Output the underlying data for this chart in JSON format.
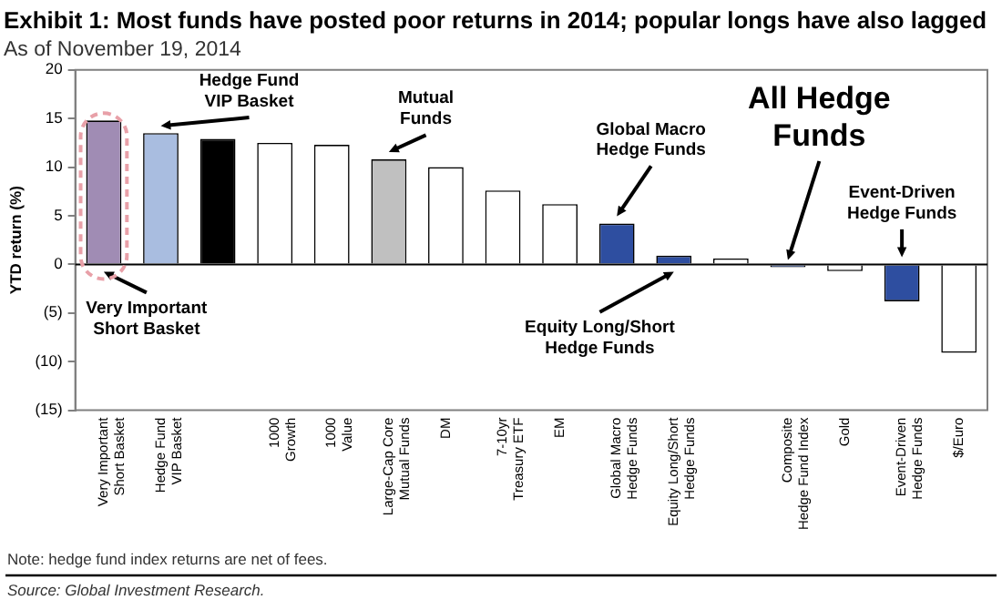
{
  "chart_data": {
    "type": "bar",
    "title": "Exhibit 1: Most funds have posted poor returns in 2014; popular longs have also lagged",
    "subtitle": "As of November 19, 2014",
    "ylabel": "YTD return (%)",
    "categories": [
      "Very Important\nShort Basket",
      "Hedge Fund\nVIP Basket",
      null,
      "1000\nGrowth",
      "1000\nValue",
      "Large-Cap Core\nMutual Funds",
      "DM",
      "7-10yr\nTreasury ETF",
      "EM",
      "Global Macro\nHedge Funds",
      "Equity Long/Short\nHedge Funds",
      null,
      "Composite\nHedge Fund Index",
      "Gold",
      "Event-Driven\nHedge Funds",
      "$/Euro"
    ],
    "values": [
      14.8,
      13.5,
      12.9,
      12.5,
      12.3,
      10.8,
      10.0,
      7.6,
      6.2,
      4.2,
      0.9,
      0.6,
      -0.3,
      -0.7,
      -3.8,
      -9.1
    ],
    "colors": [
      "#a08cb4",
      "#a9bde0",
      "#000000",
      "#ffffff",
      "#ffffff",
      "#c0c0c0",
      "#ffffff",
      "#ffffff",
      "#ffffff",
      "#2e4ea0",
      "#2e4ea0",
      "#ffffff",
      "#2e4ea0",
      "#ffffff",
      "#2e4ea0",
      "#ffffff"
    ],
    "ylim": [
      -15,
      20
    ],
    "yticks": [
      {
        "value": -15,
        "label": "(15)"
      },
      {
        "value": -10,
        "label": "(10)"
      },
      {
        "value": -5,
        "label": "(5)"
      },
      0,
      5,
      10,
      15,
      20
    ],
    "grid": false,
    "legend": false,
    "ref_lines": [
      {
        "axis": "y",
        "value": 0
      }
    ],
    "annotations": [
      {
        "text": "Very Important\nShort Basket",
        "x": "Very Important\nShort Basket",
        "y": 0
      },
      {
        "text": "Hedge Fund\nVIP Basket",
        "x": "Hedge Fund\nVIP Basket",
        "y": 13.5
      },
      {
        "text": "Mutual\nFunds",
        "x": "Large-Cap Core\nMutual Funds",
        "y": 10.8
      },
      {
        "text": "Global Macro\nHedge Funds",
        "x": "Global Macro\nHedge Funds",
        "y": 4.2
      },
      {
        "text": "All Hedge\nFunds",
        "x": "Composite\nHedge Fund Index",
        "y": -0.3
      },
      {
        "text": "Event-Driven\nHedge Funds",
        "x": "Event-Driven\nHedge Funds",
        "y": 0
      },
      {
        "text": "Equity Long/Short\nHedge Funds",
        "x": "Equity Long/Short\nHedge Funds",
        "y": 0
      },
      "Note: hedge fund index returns are net of fees.",
      "Source: Global Investment Research."
    ]
  }
}
